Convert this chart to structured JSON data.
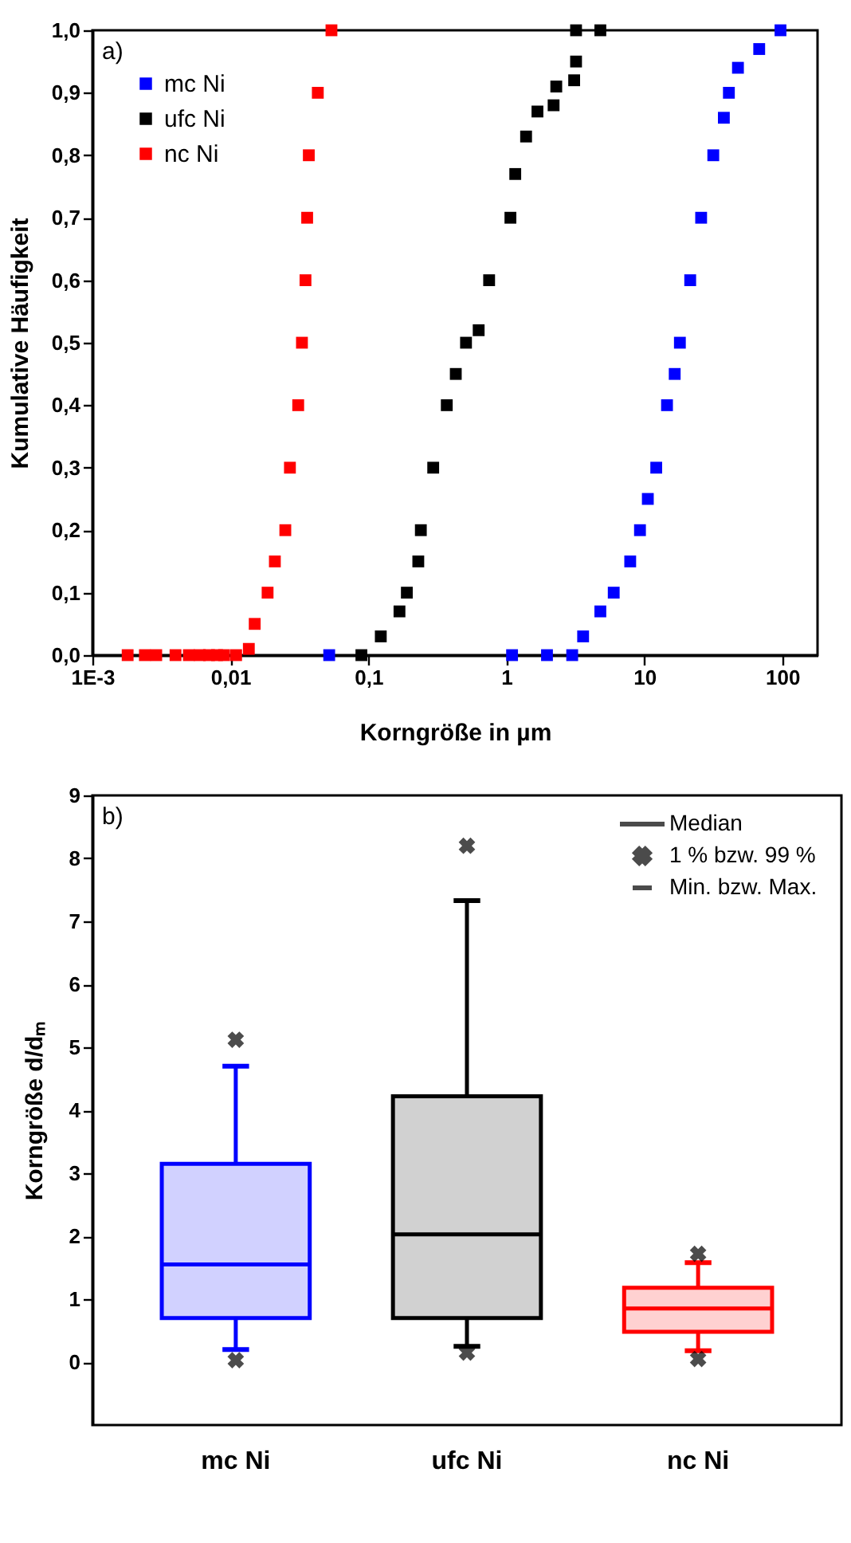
{
  "chart_data": [
    {
      "type": "scatter",
      "xlabel": "Korngröße in µm",
      "ylabel": "Kumulative Häufigkeit",
      "annotations": [
        "a)"
      ],
      "log": "x",
      "marker": "square",
      "legend": "top left",
      "grid": false,
      "xlim": [
        0.001,
        180
      ],
      "xticks": [
        {
          "value": 0.001,
          "label": "1E-3"
        },
        {
          "value": 0.01,
          "label": "0,01"
        },
        {
          "value": 0.1,
          "label": "0,1"
        },
        1,
        10,
        100
      ],
      "ylim": [
        0,
        1
      ],
      "yticks": [
        {
          "value": 0,
          "label": "0,0"
        },
        {
          "value": 0.1,
          "label": "0,1"
        },
        {
          "value": 0.2,
          "label": "0,2"
        },
        {
          "value": 0.3,
          "label": "0,3"
        },
        {
          "value": 0.4,
          "label": "0,4"
        },
        {
          "value": 0.5,
          "label": "0,5"
        },
        {
          "value": 0.6,
          "label": "0,6"
        },
        {
          "value": 0.7,
          "label": "0,7"
        },
        {
          "value": 0.8,
          "label": "0,8"
        },
        {
          "value": 0.9,
          "label": "0,9"
        },
        {
          "value": 1,
          "label": "1,0"
        }
      ],
      "series": [
        {
          "name": "mc Ni",
          "color": "#0000ff",
          "x": [
            0.052,
            1.1,
            1.97,
            3.0,
            3.6,
            4.8,
            6.0,
            7.9,
            9.3,
            10.6,
            12.2,
            14.6,
            16.6,
            18.1,
            21.5,
            25.8,
            31.6,
            37.7,
            41,
            47.7,
            68,
            97
          ],
          "values": [
            0,
            0,
            0,
            0,
            0.03,
            0.07,
            0.1,
            0.15,
            0.2,
            0.25,
            0.3,
            0.4,
            0.45,
            0.5,
            0.6,
            0.7,
            0.8,
            0.86,
            0.9,
            0.94,
            0.97,
            1.0
          ]
        },
        {
          "name": "ufc Ni",
          "color": "#000000",
          "x": [
            0.089,
            0.123,
            0.168,
            0.19,
            0.23,
            0.24,
            0.295,
            0.37,
            0.43,
            0.51,
            0.63,
            0.75,
            1.07,
            1.16,
            1.39,
            1.68,
            2.2,
            2.3,
            3.1,
            3.2,
            3.2,
            4.8
          ],
          "values": [
            0,
            0.03,
            0.07,
            0.1,
            0.15,
            0.2,
            0.3,
            0.4,
            0.45,
            0.5,
            0.52,
            0.6,
            0.7,
            0.77,
            0.83,
            0.87,
            0.88,
            0.91,
            0.92,
            0.95,
            1.0,
            1.0
          ]
        },
        {
          "name": "nc Ni",
          "color": "#ff0000",
          "x": [
            0.0018,
            0.0024,
            0.0029,
            0.004,
            0.005,
            0.006,
            0.007,
            0.008,
            0.009,
            0.011,
            0.0136,
            0.015,
            0.0186,
            0.021,
            0.025,
            0.027,
            0.031,
            0.033,
            0.035,
            0.036,
            0.037,
            0.043,
            0.054
          ],
          "values": [
            0,
            0,
            0,
            0,
            0,
            0,
            0,
            0,
            0,
            0,
            0.01,
            0.05,
            0.1,
            0.15,
            0.2,
            0.3,
            0.4,
            0.5,
            0.6,
            0.7,
            0.8,
            0.9,
            1.0
          ]
        }
      ]
    },
    {
      "type": "box",
      "ylabel": "Korngröße d/dₘ",
      "annotations": [
        "b)",
        "Median",
        "1 % bzw. 99 %",
        "Min. bzw. Max."
      ],
      "categories": [
        "mc Ni",
        "ufc Ni",
        "nc Ni"
      ],
      "colors": [
        "#0000ff",
        "#000000",
        "#ff0000"
      ],
      "grid": false,
      "ylim": [
        -1,
        9
      ],
      "yticks": [
        0,
        1,
        2,
        3,
        4,
        5,
        6,
        7,
        8,
        9
      ],
      "boxes": [
        {
          "low": 0.2,
          "q1": 0.7,
          "median": 1.55,
          "q3": 3.15,
          "high": 4.7,
          "outliers": [
            0.03,
            5.12
          ]
        },
        {
          "low": 0.25,
          "q1": 0.7,
          "median": 2.03,
          "q3": 4.22,
          "high": 7.33,
          "outliers": [
            0.15,
            8.2
          ]
        },
        {
          "low": 0.18,
          "q1": 0.48,
          "median": 0.85,
          "q3": 1.18,
          "high": 1.58,
          "outliers": [
            0.05,
            1.72
          ]
        }
      ]
    }
  ]
}
